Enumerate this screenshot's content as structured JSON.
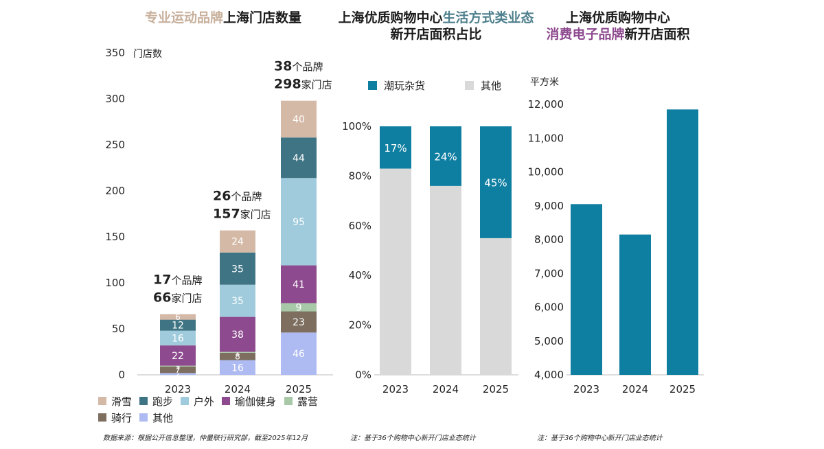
{
  "titles": {
    "left_highlight": "专业运动品牌",
    "left_rest": "上海门店数量",
    "mid_line1_plain": "上海优质购物中心",
    "mid_line1_highlight": "生活方式类业态",
    "mid_line2": "新开店面积占比",
    "right_line1": "上海优质购物中心",
    "right_line2_highlight": "消费电子品牌",
    "right_line2_rest": "新开店面积"
  },
  "notes": {
    "left": "数据来源：根据公开信息整理，仲量联行研究部，截至2025年12月",
    "mid": "注：基于36个购物中心新开门店业态统计",
    "right": "注：基于36个购物中心新开门店业态统计"
  },
  "colors": {
    "ski": "#d4b9a6",
    "run": "#3f7484",
    "outdoor": "#9fcbdc",
    "yoga": "#8e4a8e",
    "camp": "#a8c9a8",
    "ride": "#7d6e60",
    "other": "#aebaf2",
    "teal": "#0f7fa1",
    "gray": "#d9d9d9"
  },
  "chart_data": [
    {
      "type": "bar",
      "stacked": true,
      "title": "专业运动品牌上海门店数量",
      "ylabel": "门店数",
      "ylim": [
        0,
        350
      ],
      "yticks": [
        0,
        50,
        100,
        150,
        200,
        250,
        300,
        350
      ],
      "categories": [
        "2023",
        "2024",
        "2025"
      ],
      "series": [
        {
          "name": "其他",
          "color_key": "other",
          "values": [
            2,
            16,
            46
          ],
          "labels": [
            "2",
            "16",
            "46"
          ]
        },
        {
          "name": "骑行",
          "color_key": "ride",
          "values": [
            7,
            8,
            23
          ],
          "labels": [
            "7",
            "8",
            "23"
          ]
        },
        {
          "name": "露营",
          "color_key": "camp",
          "values": [
            1,
            1,
            9
          ],
          "labels": [
            "1",
            "1",
            "9"
          ]
        },
        {
          "name": "瑜伽健身",
          "color_key": "yoga",
          "values": [
            22,
            38,
            41
          ],
          "labels": [
            "22",
            "38",
            "41"
          ]
        },
        {
          "name": "户外",
          "color_key": "outdoor",
          "values": [
            16,
            35,
            95
          ],
          "labels": [
            "16",
            "35",
            "95"
          ]
        },
        {
          "name": "跑步",
          "color_key": "run",
          "values": [
            12,
            35,
            44
          ],
          "labels": [
            "12",
            "35",
            "44"
          ]
        },
        {
          "name": "滑雪",
          "color_key": "ski",
          "values": [
            6,
            24,
            40
          ],
          "labels": [
            "6",
            "24",
            "40"
          ]
        }
      ],
      "annotations": [
        {
          "brands": "17",
          "brand_unit": "个品牌",
          "stores": "66",
          "store_unit": "家门店"
        },
        {
          "brands": "26",
          "brand_unit": "个品牌",
          "stores": "157",
          "store_unit": "家门店"
        },
        {
          "brands": "38",
          "brand_unit": "个品牌",
          "stores": "298",
          "store_unit": "家门店"
        }
      ],
      "legend": [
        "滑雪",
        "跑步",
        "户外",
        "瑜伽健身",
        "露营",
        "骑行",
        "其他"
      ],
      "legend_color_keys": [
        "ski",
        "run",
        "outdoor",
        "yoga",
        "camp",
        "ride",
        "other"
      ]
    },
    {
      "type": "bar",
      "stacked": true,
      "percent": true,
      "title": "上海优质购物中心生活方式类业态新开店面积占比",
      "ylim": [
        0,
        100
      ],
      "yticks": [
        "0%",
        "20%",
        "40%",
        "60%",
        "80%",
        "100%"
      ],
      "categories": [
        "2023",
        "2024",
        "2025"
      ],
      "series": [
        {
          "name": "其他",
          "color_key": "gray",
          "values": [
            83,
            76,
            55
          ]
        },
        {
          "name": "潮玩杂货",
          "color_key": "teal",
          "values": [
            17,
            24,
            45
          ],
          "labels": [
            "17%",
            "24%",
            "45%"
          ]
        }
      ],
      "legend": [
        "潮玩杂货",
        "其他"
      ]
    },
    {
      "type": "bar",
      "title": "上海优质购物中心消费电子品牌新开店面积",
      "ylabel": "平方米",
      "ylim": [
        4000,
        12000
      ],
      "yticks": [
        "4,000",
        "5,000",
        "6,000",
        "7,000",
        "8,000",
        "9,000",
        "10,000",
        "11,000",
        "12,000"
      ],
      "categories": [
        "2023",
        "2024",
        "2025"
      ],
      "values": [
        9050,
        8150,
        11850
      ],
      "color_key": "teal"
    }
  ]
}
